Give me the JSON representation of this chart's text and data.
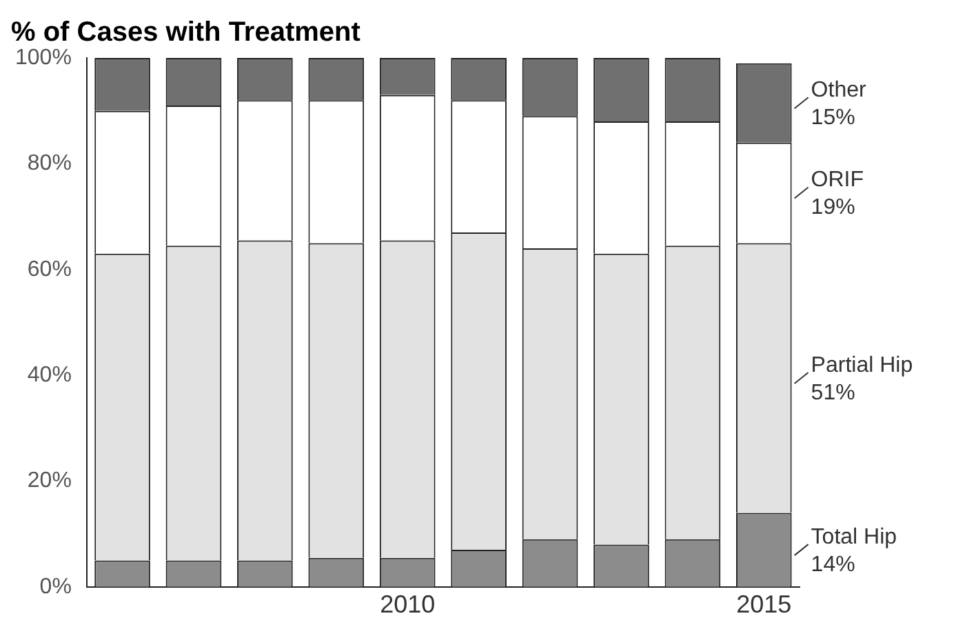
{
  "chart_data": {
    "type": "bar",
    "title": "% of Cases with Treatment",
    "stacked": true,
    "categories": [
      null,
      null,
      null,
      null,
      "2010",
      null,
      null,
      null,
      null,
      "2015"
    ],
    "series": [
      {
        "name": "Total Hip",
        "color": "#8c8c8c",
        "values": [
          5,
          5,
          5,
          5.5,
          5.5,
          7,
          9,
          8,
          9,
          14
        ],
        "value_labels": [
          null,
          null,
          null,
          null,
          null,
          null,
          null,
          null,
          null,
          "14%"
        ]
      },
      {
        "name": "Partial Hip",
        "color": "#e2e2e2",
        "values": [
          58,
          59.5,
          60.5,
          59.5,
          60,
          60,
          55,
          55,
          55.5,
          51
        ],
        "value_labels": [
          null,
          null,
          null,
          null,
          null,
          null,
          null,
          null,
          null,
          "51%"
        ]
      },
      {
        "name": "ORIF",
        "color": "#ffffff",
        "values": [
          27,
          26.5,
          26.5,
          27,
          27.5,
          25,
          25,
          25,
          23.5,
          19
        ],
        "value_labels": [
          null,
          null,
          null,
          null,
          null,
          null,
          null,
          null,
          null,
          "19%"
        ]
      },
      {
        "name": "Other",
        "color": "#707070",
        "values": [
          10,
          9,
          8,
          8,
          7,
          8,
          11,
          12,
          12,
          15
        ],
        "value_labels": [
          null,
          null,
          null,
          null,
          null,
          null,
          null,
          null,
          null,
          "15%"
        ]
      }
    ],
    "ylim": [
      0,
      100
    ],
    "yticks": [
      {
        "value": 0,
        "label": "0%"
      },
      {
        "value": 20,
        "label": "20%"
      },
      {
        "value": 40,
        "label": "40%"
      },
      {
        "value": 60,
        "label": "60%"
      },
      {
        "value": 80,
        "label": "80%"
      },
      {
        "value": 100,
        "label": "100%"
      }
    ],
    "grid": false,
    "legend": false
  }
}
